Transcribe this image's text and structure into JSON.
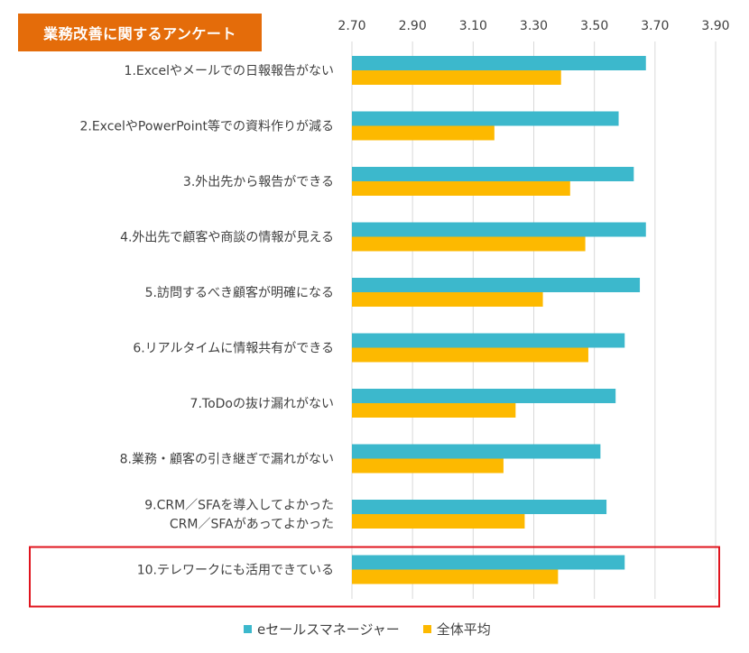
{
  "title": "業務改善に関するアンケート",
  "colors": {
    "series1": "#3CB8CC",
    "series2": "#FDB900",
    "highlight": "#E0141E",
    "title_bg": "#E46C0A",
    "gridline": "#D9D9D9",
    "text": "#404040"
  },
  "chart_data": {
    "type": "bar",
    "orientation": "horizontal",
    "categories": [
      [
        "1.Excelやメールでの日報報告がない"
      ],
      [
        "2.ExcelやPowerPoint等での資料作りが減る"
      ],
      [
        "3.外出先から報告ができる"
      ],
      [
        "4.外出先で顧客や商談の情報が見える"
      ],
      [
        "5.訪問するべき顧客が明確になる"
      ],
      [
        "6.リアルタイムに情報共有ができる"
      ],
      [
        "7.ToDoの抜け漏れがない"
      ],
      [
        "8.業務・顧客の引き継ぎで漏れがない"
      ],
      [
        "9.CRM／SFAを導入してよかった",
        "CRM／SFAがあってよかった"
      ],
      [
        "10.テレワークにも活用できている"
      ]
    ],
    "series": [
      {
        "name": "eセールスマネージャー",
        "values": [
          3.67,
          3.58,
          3.63,
          3.67,
          3.65,
          3.6,
          3.57,
          3.52,
          3.54,
          3.6
        ]
      },
      {
        "name": "全体平均",
        "values": [
          3.39,
          3.17,
          3.42,
          3.47,
          3.33,
          3.48,
          3.24,
          3.2,
          3.27,
          3.38
        ]
      }
    ],
    "xlim": [
      2.7,
      3.9
    ],
    "xticks": [
      "2.70",
      "2.90",
      "3.10",
      "3.30",
      "3.50",
      "3.70",
      "3.90"
    ],
    "xtick_values": [
      2.7,
      2.9,
      3.1,
      3.3,
      3.5,
      3.7,
      3.9
    ],
    "grid": true,
    "legend_position": "bottom",
    "highlighted_category_index": 9
  }
}
